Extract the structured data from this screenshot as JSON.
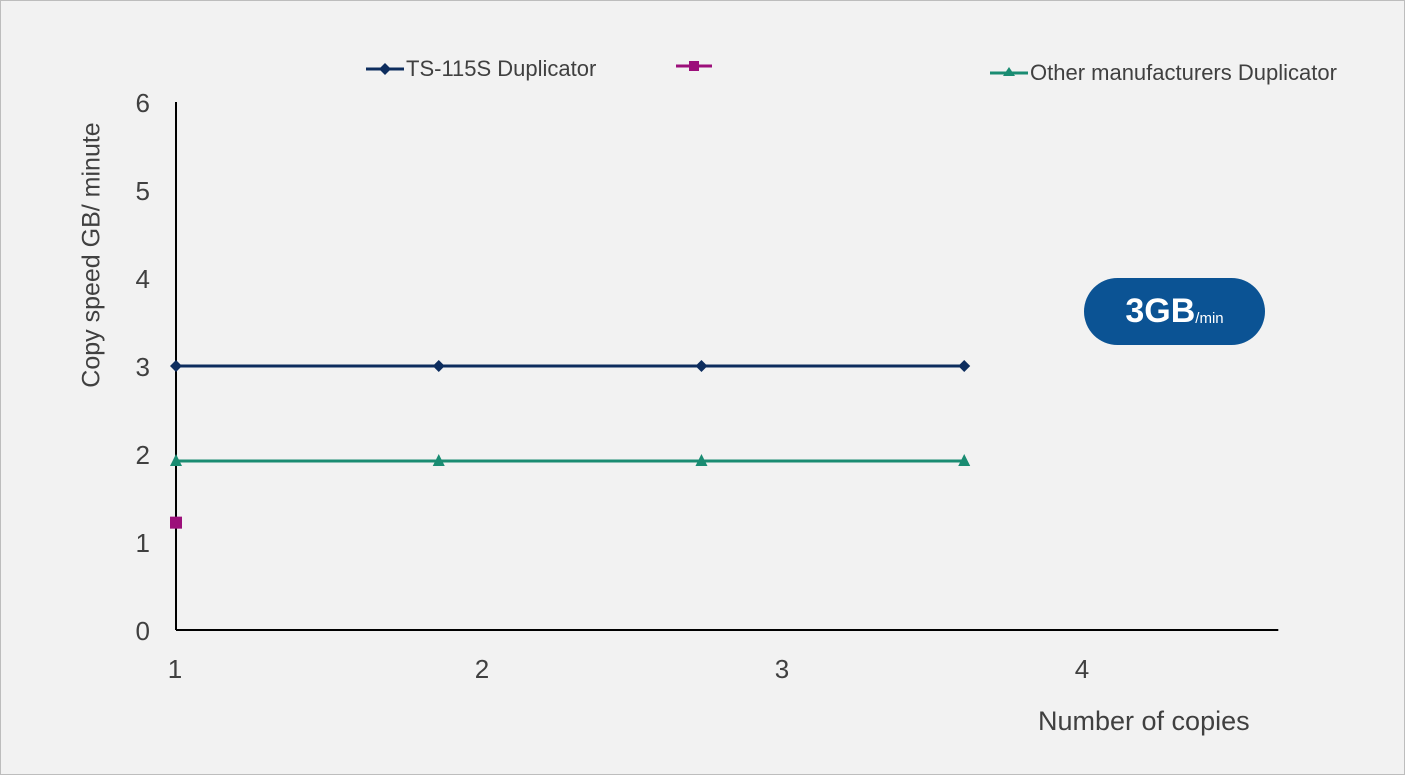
{
  "chart_data": {
    "type": "line",
    "title": "",
    "xlabel": "Number of copies",
    "ylabel": "Copy speed GB/ minute",
    "ylim": [
      0,
      6
    ],
    "xlim": [
      1,
      4.65
    ],
    "x_ticks": [
      "1",
      "2",
      "3",
      "4"
    ],
    "y_ticks": [
      "0",
      "1",
      "2",
      "3",
      "4",
      "5",
      "6"
    ],
    "grid": false,
    "legend_position": "top",
    "series": [
      {
        "name": "TS-115S Duplicator",
        "color": "#0d2d5e",
        "marker": "diamond",
        "x": [
          1,
          1.87,
          2.74,
          3.61
        ],
        "y": [
          3,
          3,
          3,
          3
        ]
      },
      {
        "name": "",
        "color": "#9c0f7a",
        "marker": "square",
        "x": [
          1
        ],
        "y": [
          1.22
        ]
      },
      {
        "name": "Other manufacturers Duplicator",
        "color": "#1a8c72",
        "marker": "triangle",
        "x": [
          1,
          1.87,
          2.74,
          3.61
        ],
        "y": [
          1.92,
          1.92,
          1.92,
          1.92
        ]
      }
    ],
    "annotation": {
      "value": "3GB",
      "unit": "/min",
      "color": "#0b5394"
    }
  }
}
